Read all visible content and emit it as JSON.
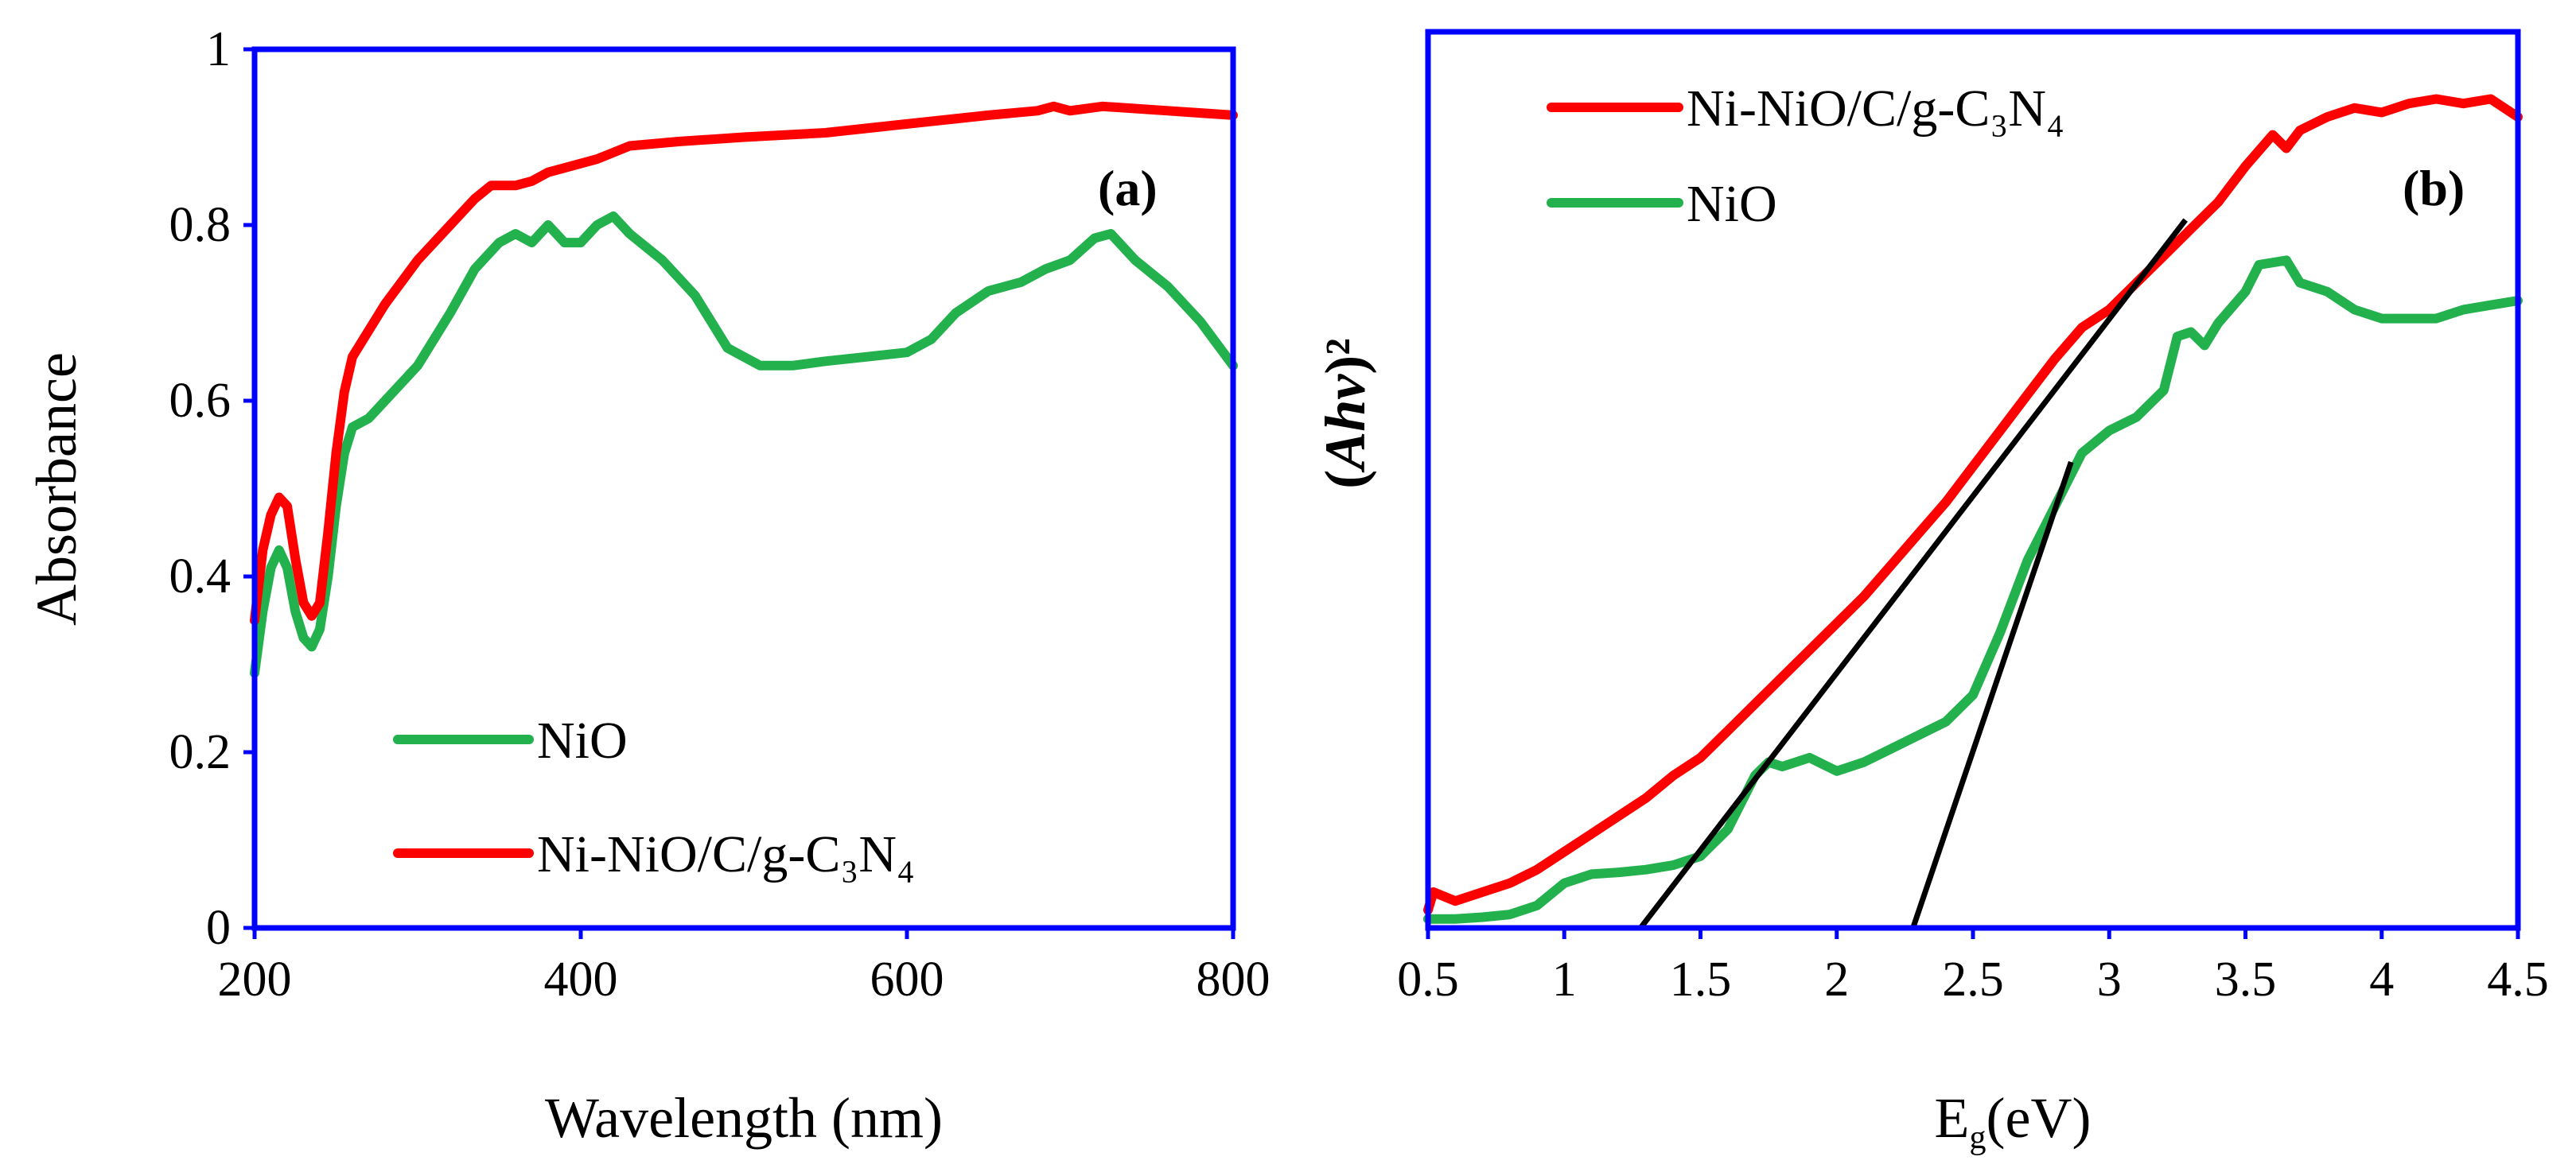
{
  "chart_data": [
    {
      "type": "line",
      "panel_label": "(a)",
      "xlabel": "Wavelength  (nm)",
      "ylabel": "Absorbance",
      "xlim": [
        200,
        800
      ],
      "ylim": [
        0,
        1
      ],
      "x_ticks": [
        "200",
        "400",
        "600",
        "800"
      ],
      "y_ticks": [
        "0",
        "0.2",
        "0.4",
        "0.6",
        "0.8",
        "1"
      ],
      "legend_position": "bottom-left",
      "series": [
        {
          "name": "NiO",
          "color": "#22b14c",
          "points": [
            [
              200,
              0.29
            ],
            [
              205,
              0.36
            ],
            [
              210,
              0.41
            ],
            [
              215,
              0.43
            ],
            [
              220,
              0.41
            ],
            [
              225,
              0.36
            ],
            [
              230,
              0.33
            ],
            [
              235,
              0.32
            ],
            [
              240,
              0.34
            ],
            [
              245,
              0.4
            ],
            [
              250,
              0.48
            ],
            [
              255,
              0.54
            ],
            [
              260,
              0.57
            ],
            [
              270,
              0.58
            ],
            [
              280,
              0.6
            ],
            [
              300,
              0.64
            ],
            [
              320,
              0.7
            ],
            [
              335,
              0.75
            ],
            [
              350,
              0.78
            ],
            [
              360,
              0.79
            ],
            [
              370,
              0.78
            ],
            [
              380,
              0.8
            ],
            [
              385,
              0.79
            ],
            [
              390,
              0.78
            ],
            [
              400,
              0.78
            ],
            [
              410,
              0.8
            ],
            [
              420,
              0.81
            ],
            [
              430,
              0.79
            ],
            [
              450,
              0.76
            ],
            [
              470,
              0.72
            ],
            [
              490,
              0.66
            ],
            [
              510,
              0.64
            ],
            [
              530,
              0.64
            ],
            [
              550,
              0.645
            ],
            [
              575,
              0.65
            ],
            [
              600,
              0.655
            ],
            [
              615,
              0.67
            ],
            [
              630,
              0.7
            ],
            [
              650,
              0.725
            ],
            [
              670,
              0.735
            ],
            [
              685,
              0.75
            ],
            [
              700,
              0.76
            ],
            [
              715,
              0.785
            ],
            [
              725,
              0.79
            ],
            [
              740,
              0.76
            ],
            [
              760,
              0.73
            ],
            [
              780,
              0.69
            ],
            [
              800,
              0.64
            ]
          ]
        },
        {
          "name": "Ni-NiO/C/g-C₃N₄",
          "color": "#ff0000",
          "points": [
            [
              200,
              0.35
            ],
            [
              205,
              0.43
            ],
            [
              210,
              0.47
            ],
            [
              215,
              0.49
            ],
            [
              220,
              0.48
            ],
            [
              225,
              0.42
            ],
            [
              230,
              0.37
            ],
            [
              235,
              0.355
            ],
            [
              240,
              0.37
            ],
            [
              245,
              0.45
            ],
            [
              250,
              0.54
            ],
            [
              255,
              0.61
            ],
            [
              260,
              0.65
            ],
            [
              270,
              0.68
            ],
            [
              280,
              0.71
            ],
            [
              300,
              0.76
            ],
            [
              320,
              0.8
            ],
            [
              335,
              0.83
            ],
            [
              345,
              0.845
            ],
            [
              360,
              0.845
            ],
            [
              370,
              0.85
            ],
            [
              380,
              0.86
            ],
            [
              390,
              0.865
            ],
            [
              410,
              0.875
            ],
            [
              430,
              0.89
            ],
            [
              460,
              0.895
            ],
            [
              500,
              0.9
            ],
            [
              550,
              0.905
            ],
            [
              600,
              0.915
            ],
            [
              650,
              0.925
            ],
            [
              680,
              0.93
            ],
            [
              690,
              0.935
            ],
            [
              700,
              0.93
            ],
            [
              720,
              0.935
            ],
            [
              760,
              0.93
            ],
            [
              800,
              0.925
            ]
          ]
        }
      ]
    },
    {
      "type": "line",
      "panel_label": "(b)",
      "xlabel": "E",
      "xlabel_sub": "g",
      "xlabel_unit": "(eV)",
      "ylabel": "(Ahν)²",
      "ylabel_italic": "Ahν",
      "xlim": [
        0.5,
        4.5
      ],
      "ylim": [
        0,
        1
      ],
      "x_ticks": [
        "0.5",
        "1",
        "1.5",
        "2",
        "2.5",
        "3",
        "3.5",
        "4",
        "4.5"
      ],
      "legend_position": "top-left",
      "series": [
        {
          "name": "Ni-NiO/C/g-C₃N₄",
          "color": "#ff0000",
          "points": [
            [
              0.5,
              0.02
            ],
            [
              0.52,
              0.04
            ],
            [
              0.6,
              0.03
            ],
            [
              0.7,
              0.04
            ],
            [
              0.8,
              0.05
            ],
            [
              0.9,
              0.065
            ],
            [
              1.0,
              0.085
            ],
            [
              1.1,
              0.105
            ],
            [
              1.2,
              0.125
            ],
            [
              1.3,
              0.145
            ],
            [
              1.4,
              0.17
            ],
            [
              1.5,
              0.19
            ],
            [
              1.6,
              0.22
            ],
            [
              1.7,
              0.25
            ],
            [
              1.8,
              0.28
            ],
            [
              1.9,
              0.31
            ],
            [
              2.0,
              0.34
            ],
            [
              2.1,
              0.37
            ],
            [
              2.2,
              0.405
            ],
            [
              2.3,
              0.44
            ],
            [
              2.4,
              0.475
            ],
            [
              2.5,
              0.515
            ],
            [
              2.6,
              0.555
            ],
            [
              2.7,
              0.595
            ],
            [
              2.8,
              0.635
            ],
            [
              2.9,
              0.67
            ],
            [
              3.0,
              0.69
            ],
            [
              3.1,
              0.72
            ],
            [
              3.2,
              0.75
            ],
            [
              3.3,
              0.78
            ],
            [
              3.4,
              0.81
            ],
            [
              3.5,
              0.85
            ],
            [
              3.6,
              0.885
            ],
            [
              3.65,
              0.87
            ],
            [
              3.7,
              0.89
            ],
            [
              3.8,
              0.905
            ],
            [
              3.9,
              0.915
            ],
            [
              4.0,
              0.91
            ],
            [
              4.1,
              0.92
            ],
            [
              4.2,
              0.925
            ],
            [
              4.3,
              0.92
            ],
            [
              4.4,
              0.925
            ],
            [
              4.5,
              0.905
            ]
          ]
        },
        {
          "name": "NiO",
          "color": "#22b14c",
          "points": [
            [
              0.5,
              0.01
            ],
            [
              0.6,
              0.01
            ],
            [
              0.7,
              0.012
            ],
            [
              0.8,
              0.015
            ],
            [
              0.9,
              0.025
            ],
            [
              1.0,
              0.05
            ],
            [
              1.1,
              0.06
            ],
            [
              1.2,
              0.062
            ],
            [
              1.3,
              0.065
            ],
            [
              1.4,
              0.07
            ],
            [
              1.5,
              0.08
            ],
            [
              1.6,
              0.11
            ],
            [
              1.7,
              0.17
            ],
            [
              1.75,
              0.185
            ],
            [
              1.8,
              0.18
            ],
            [
              1.9,
              0.19
            ],
            [
              2.0,
              0.175
            ],
            [
              2.1,
              0.185
            ],
            [
              2.2,
              0.2
            ],
            [
              2.3,
              0.215
            ],
            [
              2.4,
              0.23
            ],
            [
              2.5,
              0.26
            ],
            [
              2.6,
              0.33
            ],
            [
              2.7,
              0.41
            ],
            [
              2.8,
              0.47
            ],
            [
              2.9,
              0.53
            ],
            [
              3.0,
              0.555
            ],
            [
              3.1,
              0.57
            ],
            [
              3.2,
              0.6
            ],
            [
              3.25,
              0.66
            ],
            [
              3.3,
              0.665
            ],
            [
              3.35,
              0.65
            ],
            [
              3.4,
              0.675
            ],
            [
              3.5,
              0.71
            ],
            [
              3.55,
              0.74
            ],
            [
              3.65,
              0.745
            ],
            [
              3.7,
              0.72
            ],
            [
              3.8,
              0.71
            ],
            [
              3.9,
              0.69
            ],
            [
              4.0,
              0.68
            ],
            [
              4.1,
              0.68
            ],
            [
              4.2,
              0.68
            ],
            [
              4.3,
              0.69
            ],
            [
              4.4,
              0.695
            ],
            [
              4.5,
              0.7
            ]
          ]
        }
      ],
      "tangent_lines": [
        {
          "name": "Ni-NiO/C/g-C₃N₄ fit",
          "color": "#000000",
          "from": [
            1.28,
            0.0
          ],
          "to": [
            3.28,
            0.79
          ]
        },
        {
          "name": "NiO fit",
          "color": "#000000",
          "from": [
            2.28,
            0.0
          ],
          "to": [
            2.86,
            0.52
          ]
        }
      ]
    }
  ]
}
